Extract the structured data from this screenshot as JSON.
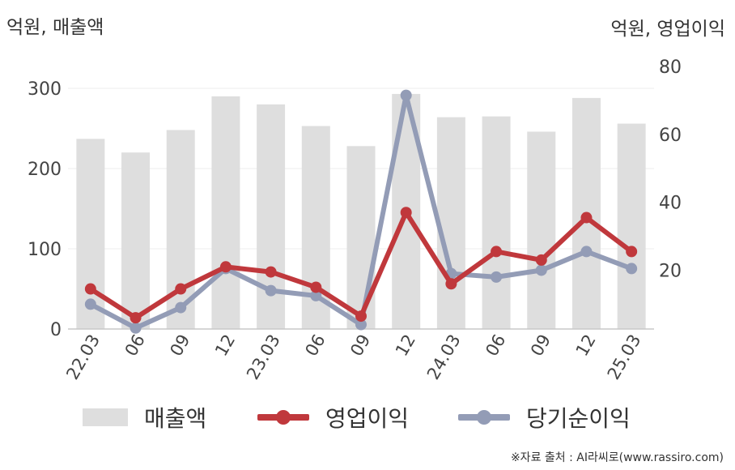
{
  "chart_data": {
    "type": "bar+line",
    "categories": [
      "22.03",
      "06",
      "09",
      "12",
      "23.03",
      "06",
      "09",
      "12",
      "24.03",
      "06",
      "09",
      "12",
      "25.03"
    ],
    "left_axis": {
      "label": "억원, 매출액",
      "ylim": [
        0,
        300
      ],
      "ticks": [
        "0",
        "100",
        "200",
        "300"
      ]
    },
    "right_axis": {
      "label": "억원, 영업이익",
      "ylim": [
        2.7,
        80
      ],
      "ticks": [
        "20",
        "40",
        "60",
        "80"
      ]
    },
    "series": [
      {
        "name": "매출액",
        "type": "bar",
        "axis": "left",
        "values": [
          237,
          220,
          248,
          290,
          280,
          253,
          228,
          293,
          264,
          265,
          246,
          288,
          256
        ]
      },
      {
        "name": "영업이익",
        "type": "line",
        "axis": "right",
        "values": [
          14.5,
          6.0,
          14.5,
          21.0,
          19.5,
          15.0,
          6.5,
          37.0,
          16.0,
          25.5,
          23.0,
          35.5,
          25.5
        ]
      },
      {
        "name": "당기순이익",
        "type": "line",
        "axis": "right",
        "values": [
          10.0,
          3.0,
          9.0,
          20.5,
          14.0,
          12.5,
          4.0,
          71.5,
          19.0,
          18.0,
          20.0,
          25.5,
          20.5
        ]
      }
    ],
    "grid": true,
    "legend_position": "bottom"
  },
  "colors": {
    "bar": "#dedede",
    "op_profit": "#c0383c",
    "net_profit": "#939cb6",
    "grid": "#ececec",
    "axis": "#c8c8c8"
  },
  "legend": {
    "bar": "매출액",
    "op": "영업이익",
    "net": "당기순이익"
  },
  "source": "※자료 출처 : AI라씨로(www.rassiro.com)"
}
